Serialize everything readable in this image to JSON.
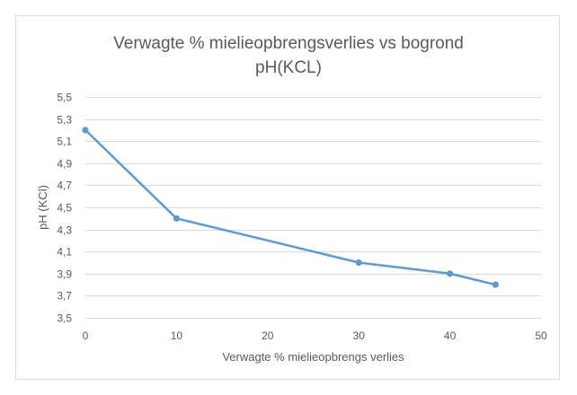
{
  "chart_data": {
    "type": "line",
    "title_lines": [
      "Verwagte % mielieopbrengsverlies vs bogrond",
      "pH(KCL)"
    ],
    "xlabel": "Verwagte % mielieopbrengs verlies",
    "ylabel": "pH (KCl)",
    "xlim": [
      0,
      50
    ],
    "ylim": [
      3.5,
      5.5
    ],
    "x_ticks": [
      0,
      10,
      20,
      30,
      40,
      50
    ],
    "x_tick_labels": [
      "0",
      "10",
      "20",
      "30",
      "40",
      "50"
    ],
    "y_ticks": [
      3.5,
      3.7,
      3.9,
      4.1,
      4.3,
      4.5,
      4.7,
      4.9,
      5.1,
      5.3,
      5.5
    ],
    "y_tick_labels": [
      "3,5",
      "3,7",
      "3,9",
      "4,1",
      "4,3",
      "4,5",
      "4,7",
      "4,9",
      "5,1",
      "5,3",
      "5,5"
    ],
    "grid": "horizontal",
    "legend": "none",
    "colors": {
      "line": "#5b9bd5",
      "grid": "#d9d9d9",
      "text": "#595959"
    },
    "series": [
      {
        "x": [
          0,
          10,
          30,
          40,
          45
        ],
        "y": [
          5.2,
          4.4,
          4.0,
          3.9,
          3.8
        ]
      }
    ]
  }
}
